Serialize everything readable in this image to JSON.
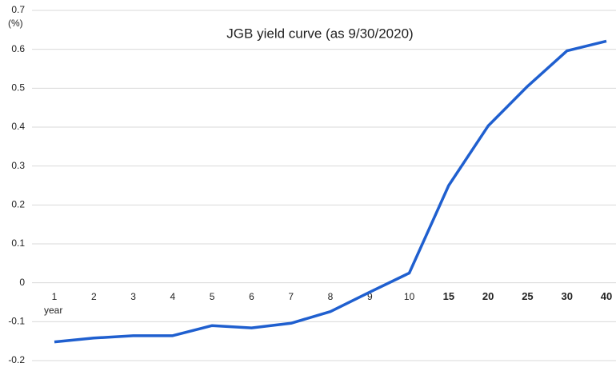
{
  "chart_data": {
    "type": "line",
    "title": "JGB yield curve (as 9/30/2020)",
    "y_label": "(%)",
    "x_label": "year",
    "categories": [
      "1",
      "2",
      "3",
      "4",
      "5",
      "6",
      "7",
      "8",
      "9",
      "10",
      "15",
      "20",
      "25",
      "30",
      "40"
    ],
    "series": [
      {
        "name": "JGB yield",
        "color": "#1f5fcf",
        "values": [
          -0.152,
          -0.142,
          -0.136,
          -0.136,
          -0.11,
          -0.116,
          -0.104,
          -0.074,
          -0.024,
          0.025,
          0.25,
          0.403,
          0.505,
          0.596,
          0.621
        ]
      }
    ],
    "ylim": [
      -0.2,
      0.7
    ],
    "yticks": [
      0.7,
      0.6,
      0.5,
      0.4,
      0.3,
      0.2,
      0.1,
      0,
      -0.1,
      -0.2
    ],
    "grid": true
  }
}
